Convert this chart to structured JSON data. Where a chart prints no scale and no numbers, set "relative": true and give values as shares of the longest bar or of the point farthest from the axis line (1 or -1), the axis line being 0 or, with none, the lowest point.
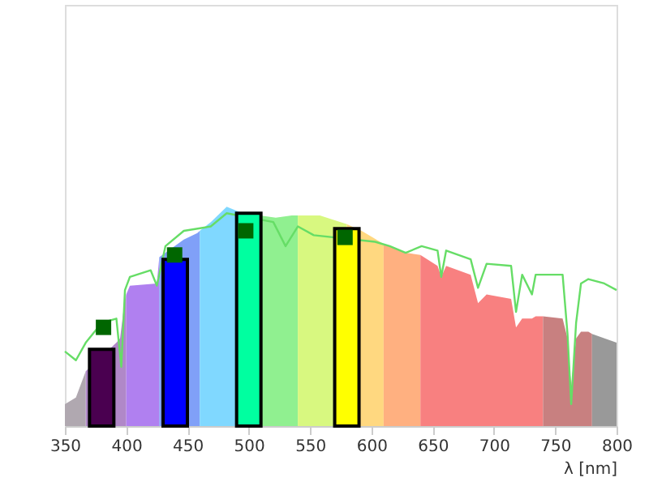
{
  "chart_data": {
    "type": "area",
    "relative": true,
    "xlabel": "λ [nm]",
    "xlim": [
      350,
      800
    ],
    "xticks": [
      350,
      400,
      450,
      500,
      550,
      600,
      650,
      700,
      750,
      800
    ],
    "grid": false,
    "legend": false,
    "marker": "none",
    "series": [
      {
        "color": "#b0a8b0",
        "x": [
          350,
          359,
          367
        ],
        "values": [
          0.1,
          0.13,
          0.25
        ]
      },
      {
        "color": "#b088c8",
        "x": [
          367,
          392,
          395,
          399,
          400
        ],
        "values": [
          0.25,
          0.38,
          0.4,
          0.58,
          0.6
        ]
      },
      {
        "color": "#b080f0",
        "x": [
          400,
          403,
          425,
          427
        ],
        "values": [
          0.6,
          0.64,
          0.65,
          0.77
        ]
      },
      {
        "color": "#80a0f8",
        "x": [
          427,
          447,
          458,
          460
        ],
        "values": [
          0.77,
          0.85,
          0.88,
          0.89
        ]
      },
      {
        "color": "#80d8ff",
        "x": [
          460,
          469,
          482,
          495
        ],
        "values": [
          0.89,
          0.93,
          1.0,
          0.97
        ]
      },
      {
        "color": "#90f090",
        "x": [
          495,
          509,
          522,
          535,
          540
        ],
        "values": [
          0.97,
          0.96,
          0.95,
          0.96,
          0.96
        ]
      },
      {
        "color": "#d8f880",
        "x": [
          540,
          558,
          580
        ],
        "values": [
          0.96,
          0.96,
          0.92
        ]
      },
      {
        "color": "#ffd880",
        "x": [
          580,
          592,
          601,
          610
        ],
        "values": [
          0.92,
          0.89,
          0.86,
          0.83
        ]
      },
      {
        "color": "#ffb080",
        "x": [
          610,
          628,
          640
        ],
        "values": [
          0.83,
          0.79,
          0.78
        ]
      },
      {
        "color": "#f88080",
        "x": [
          640,
          654,
          657,
          661,
          681,
          687,
          694,
          714,
          718,
          723,
          731,
          734,
          740
        ],
        "values": [
          0.78,
          0.73,
          0.68,
          0.73,
          0.69,
          0.56,
          0.6,
          0.58,
          0.45,
          0.49,
          0.49,
          0.5,
          0.5
        ]
      },
      {
        "color": "#c88080",
        "x": [
          740,
          756,
          760,
          763,
          767,
          771,
          777,
          780
        ],
        "values": [
          0.5,
          0.49,
          0.4,
          0.18,
          0.4,
          0.43,
          0.43,
          0.42
        ]
      },
      {
        "color": "#999999",
        "x": [
          780,
          800
        ],
        "values": [
          0.42,
          0.38
        ]
      },
      {
        "type": "line",
        "color": "#66dd66",
        "x": [
          350,
          359,
          367,
          380,
          392,
          396,
          399,
          403,
          420,
          425,
          432,
          447,
          469,
          482,
          520,
          530,
          540,
          553,
          603,
          615,
          628,
          641,
          654,
          657,
          661,
          681,
          687,
          694,
          714,
          718,
          723,
          731,
          734,
          756,
          760,
          763,
          767,
          771,
          777,
          790,
          800
        ],
        "values": [
          0.34,
          0.3,
          0.38,
          0.47,
          0.49,
          0.27,
          0.62,
          0.68,
          0.71,
          0.64,
          0.82,
          0.89,
          0.91,
          0.97,
          0.93,
          0.82,
          0.91,
          0.87,
          0.84,
          0.82,
          0.79,
          0.82,
          0.8,
          0.68,
          0.8,
          0.76,
          0.63,
          0.74,
          0.73,
          0.52,
          0.69,
          0.6,
          0.69,
          0.69,
          0.42,
          0.1,
          0.47,
          0.65,
          0.67,
          0.65,
          0.62
        ]
      },
      {
        "type": "bar",
        "colors": [
          "#4a0050",
          "#0000ff",
          "#00ffa0",
          "#ffff00"
        ],
        "x": [
          380,
          440,
          500,
          580
        ],
        "values": [
          0.35,
          0.76,
          0.97,
          0.9
        ]
      },
      {
        "type": "scatter",
        "marker": "square",
        "color": "#006600",
        "x": [
          381.5,
          439.5,
          497.5,
          578.5
        ],
        "values": [
          0.45,
          0.78,
          0.89,
          0.86
        ]
      }
    ]
  }
}
